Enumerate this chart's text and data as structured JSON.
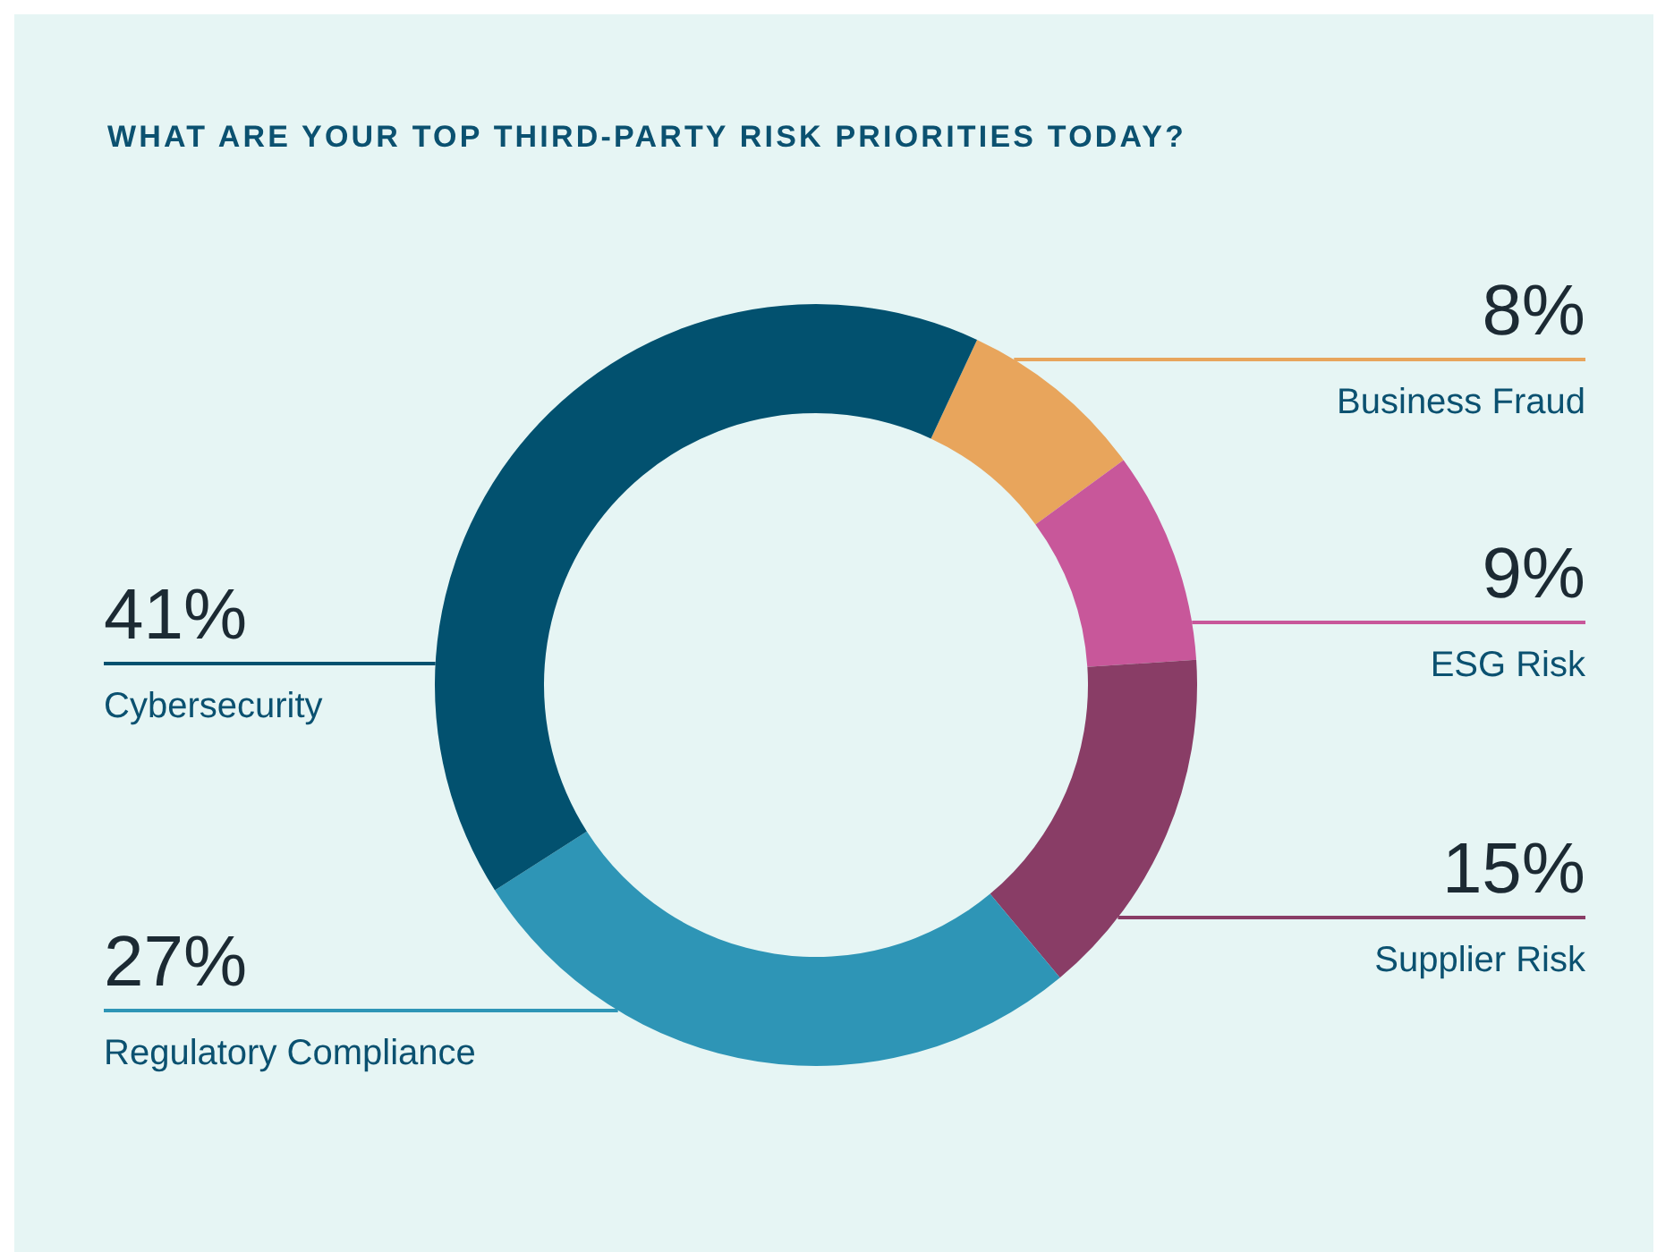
{
  "chart_data": {
    "type": "donut",
    "title": "WHAT ARE YOUR TOP THIRD-PARTY RISK PRIORITIES TODAY?",
    "categories": [
      "Business Fraud",
      "ESG Risk",
      "Supplier Risk",
      "Regulatory Compliance",
      "Cybersecurity"
    ],
    "values": [
      8,
      9,
      15,
      27,
      41
    ],
    "value_labels": [
      "8%",
      "9%",
      "15%",
      "27%",
      "41%"
    ],
    "colors": [
      "#e8a55c",
      "#c8579a",
      "#893d66",
      "#2e95b6",
      "#02516f"
    ]
  }
}
